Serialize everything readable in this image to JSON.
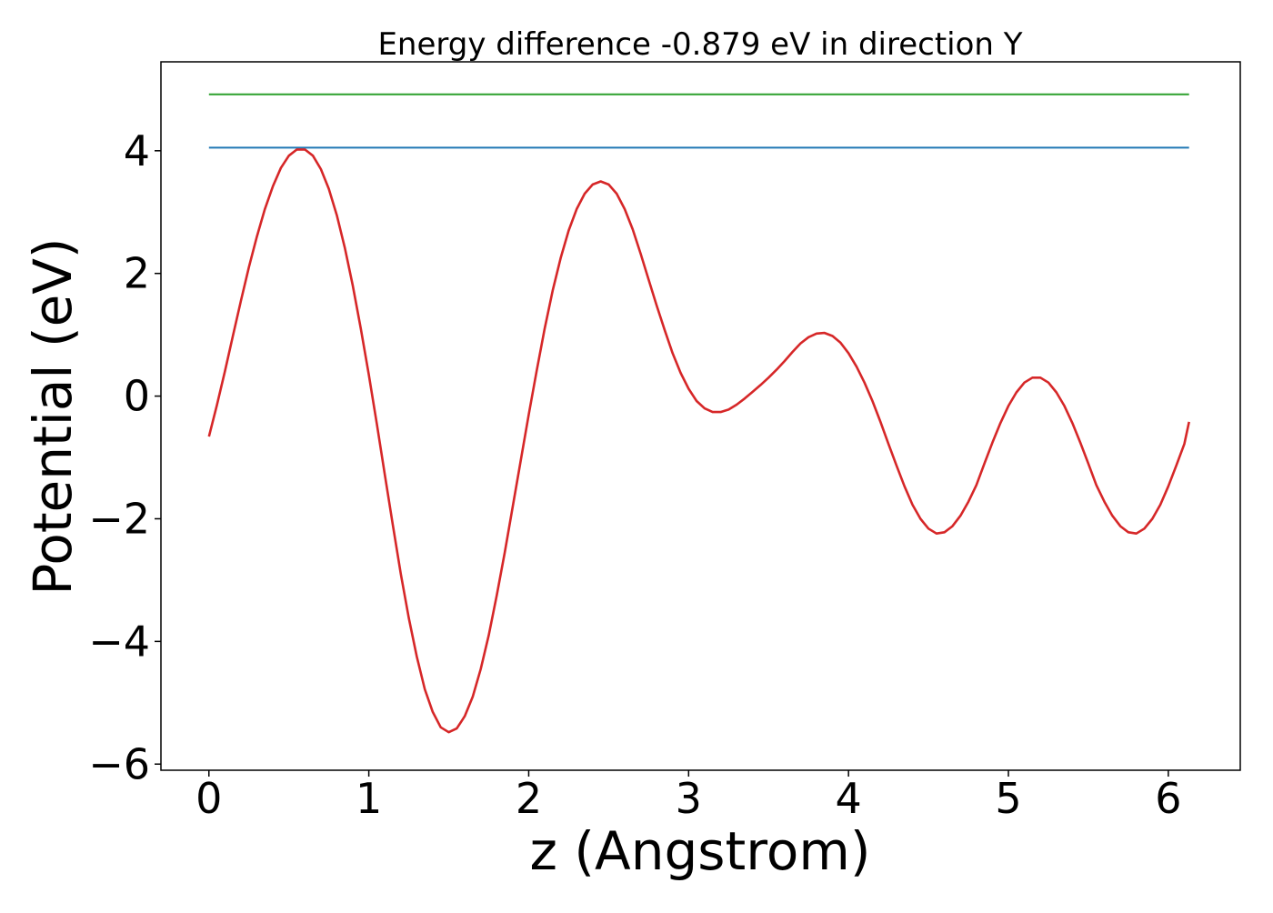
{
  "chart_data": {
    "type": "line",
    "title": "Energy difference -0.879 eV in direction Y",
    "xlabel": "z (Angstrom)",
    "ylabel": "Potential (eV)",
    "xlim": [
      -0.3,
      6.45
    ],
    "ylim": [
      -6.1,
      5.45
    ],
    "x_ticks": [
      0,
      1,
      2,
      3,
      4,
      5,
      6
    ],
    "x_tick_labels": [
      "0",
      "1",
      "2",
      "3",
      "4",
      "5",
      "6"
    ],
    "y_ticks": [
      -6,
      -4,
      -2,
      0,
      2,
      4
    ],
    "y_tick_labels": [
      "−6",
      "−4",
      "−2",
      "0",
      "2",
      "4"
    ],
    "grid": false,
    "legend": "none",
    "series": [
      {
        "color": "#2ca02c",
        "x": [
          0,
          6.13
        ],
        "y": [
          4.92,
          4.92
        ]
      },
      {
        "color": "#1f77b4",
        "x": [
          0,
          6.13
        ],
        "y": [
          4.05,
          4.05
        ]
      },
      {
        "color": "#d62728",
        "x": [
          0,
          0.05,
          0.1,
          0.15,
          0.2,
          0.25,
          0.3,
          0.35,
          0.4,
          0.45,
          0.5,
          0.55,
          0.6,
          0.65,
          0.7,
          0.75,
          0.8,
          0.85,
          0.9,
          0.95,
          1.0,
          1.05,
          1.1,
          1.15,
          1.2,
          1.25,
          1.3,
          1.35,
          1.4,
          1.45,
          1.5,
          1.55,
          1.6,
          1.65,
          1.7,
          1.75,
          1.8,
          1.85,
          1.9,
          1.95,
          2.0,
          2.05,
          2.1,
          2.15,
          2.2,
          2.25,
          2.3,
          2.35,
          2.4,
          2.45,
          2.5,
          2.55,
          2.6,
          2.65,
          2.7,
          2.75,
          2.8,
          2.85,
          2.9,
          2.95,
          3.0,
          3.05,
          3.1,
          3.15,
          3.2,
          3.25,
          3.3,
          3.35,
          3.4,
          3.45,
          3.5,
          3.55,
          3.6,
          3.65,
          3.7,
          3.75,
          3.8,
          3.85,
          3.9,
          3.95,
          4.0,
          4.05,
          4.1,
          4.15,
          4.2,
          4.25,
          4.3,
          4.35,
          4.4,
          4.45,
          4.5,
          4.55,
          4.6,
          4.65,
          4.7,
          4.75,
          4.8,
          4.85,
          4.9,
          4.95,
          5.0,
          5.05,
          5.1,
          5.15,
          5.2,
          5.25,
          5.3,
          5.35,
          5.4,
          5.45,
          5.5,
          5.55,
          5.6,
          5.65,
          5.7,
          5.75,
          5.8,
          5.85,
          5.9,
          5.95,
          6.0,
          6.05,
          6.1,
          6.13
        ],
        "y": [
          -0.66,
          -0.15,
          0.4,
          0.98,
          1.55,
          2.1,
          2.6,
          3.05,
          3.42,
          3.72,
          3.92,
          4.02,
          4.02,
          3.92,
          3.7,
          3.38,
          2.95,
          2.42,
          1.8,
          1.1,
          0.35,
          -0.45,
          -1.28,
          -2.1,
          -2.9,
          -3.62,
          -4.25,
          -4.78,
          -5.15,
          -5.4,
          -5.48,
          -5.42,
          -5.22,
          -4.9,
          -4.45,
          -3.9,
          -3.25,
          -2.55,
          -1.8,
          -1.05,
          -0.3,
          0.42,
          1.1,
          1.72,
          2.25,
          2.7,
          3.05,
          3.3,
          3.45,
          3.5,
          3.45,
          3.3,
          3.05,
          2.72,
          2.32,
          1.9,
          1.48,
          1.08,
          0.7,
          0.38,
          0.12,
          -0.08,
          -0.2,
          -0.26,
          -0.26,
          -0.22,
          -0.14,
          -0.04,
          0.07,
          0.18,
          0.3,
          0.43,
          0.57,
          0.72,
          0.86,
          0.96,
          1.02,
          1.03,
          0.98,
          0.87,
          0.7,
          0.48,
          0.22,
          -0.08,
          -0.42,
          -0.78,
          -1.13,
          -1.47,
          -1.77,
          -2.0,
          -2.16,
          -2.24,
          -2.22,
          -2.12,
          -1.95,
          -1.72,
          -1.45,
          -1.1,
          -0.76,
          -0.44,
          -0.16,
          0.06,
          0.22,
          0.3,
          0.3,
          0.22,
          0.06,
          -0.16,
          -0.44,
          -0.76,
          -1.1,
          -1.45,
          -1.72,
          -1.95,
          -2.12,
          -2.22,
          -2.24,
          -2.16,
          -2.0,
          -1.77,
          -1.47,
          -1.13,
          -0.78,
          -0.42
        ]
      }
    ]
  }
}
